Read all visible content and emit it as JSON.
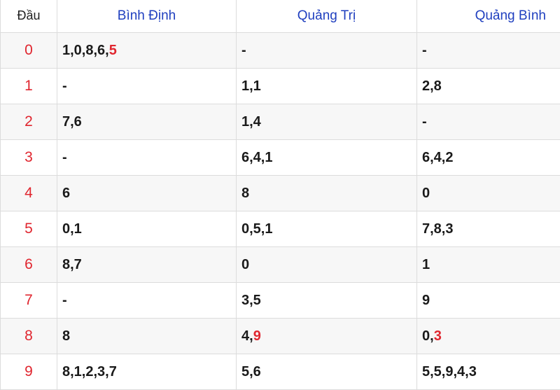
{
  "header": {
    "dau": "Đầu",
    "provinces": [
      "Bình Định",
      "Quảng Trị",
      "Quảng Bình"
    ]
  },
  "colors": {
    "header_text": "#1f3fbf",
    "head_digit": "#e0262f",
    "highlight": "#e0262f"
  },
  "rows": [
    {
      "head": "0",
      "cells": [
        {
          "text": "1,0,8,6,",
          "hl": "5"
        },
        {
          "text": "-",
          "hl": ""
        },
        {
          "text": "-",
          "hl": ""
        }
      ]
    },
    {
      "head": "1",
      "cells": [
        {
          "text": "-",
          "hl": ""
        },
        {
          "text": "1,1",
          "hl": ""
        },
        {
          "text": "2,8",
          "hl": ""
        }
      ]
    },
    {
      "head": "2",
      "cells": [
        {
          "text": "7,6",
          "hl": ""
        },
        {
          "text": "1,4",
          "hl": ""
        },
        {
          "text": "-",
          "hl": ""
        }
      ]
    },
    {
      "head": "3",
      "cells": [
        {
          "text": "-",
          "hl": ""
        },
        {
          "text": "6,4,1",
          "hl": ""
        },
        {
          "text": "6,4,2",
          "hl": ""
        }
      ]
    },
    {
      "head": "4",
      "cells": [
        {
          "text": "6",
          "hl": ""
        },
        {
          "text": "8",
          "hl": ""
        },
        {
          "text": "0",
          "hl": ""
        }
      ]
    },
    {
      "head": "5",
      "cells": [
        {
          "text": "0,1",
          "hl": ""
        },
        {
          "text": "0,5,1",
          "hl": ""
        },
        {
          "text": "7,8,3",
          "hl": ""
        }
      ]
    },
    {
      "head": "6",
      "cells": [
        {
          "text": "8,7",
          "hl": ""
        },
        {
          "text": "0",
          "hl": ""
        },
        {
          "text": "1",
          "hl": ""
        }
      ]
    },
    {
      "head": "7",
      "cells": [
        {
          "text": "-",
          "hl": ""
        },
        {
          "text": "3,5",
          "hl": ""
        },
        {
          "text": "9",
          "hl": ""
        }
      ]
    },
    {
      "head": "8",
      "cells": [
        {
          "text": "8",
          "hl": ""
        },
        {
          "text": "4,",
          "hl": "9"
        },
        {
          "text": "0,",
          "hl": "3"
        }
      ]
    },
    {
      "head": "9",
      "cells": [
        {
          "text": "8,1,2,3,7",
          "hl": ""
        },
        {
          "text": "5,6",
          "hl": ""
        },
        {
          "text": "5,5,9,4,3",
          "hl": ""
        }
      ]
    }
  ]
}
